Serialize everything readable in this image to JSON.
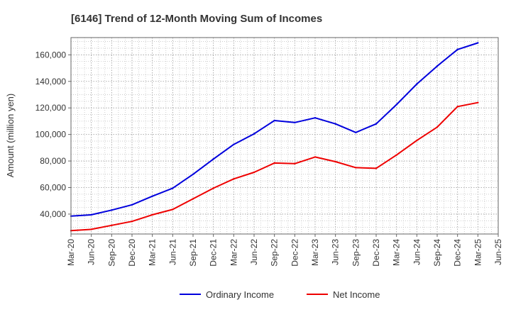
{
  "chart_data": {
    "type": "line",
    "title": "[6146]  Trend of 12-Month Moving Sum of Incomes",
    "xlabel": "",
    "ylabel": "Amount (million yen)",
    "ylim": [
      25000,
      173000
    ],
    "yticks": [
      40000,
      60000,
      80000,
      100000,
      120000,
      140000,
      160000
    ],
    "ytick_labels": [
      "40,000",
      "60,000",
      "80,000",
      "100,000",
      "120,000",
      "140,000",
      "160,000"
    ],
    "categories": [
      "Mar-20",
      "Jun-20",
      "Sep-20",
      "Dec-20",
      "Mar-21",
      "Jun-21",
      "Sep-21",
      "Dec-21",
      "Mar-22",
      "Jun-22",
      "Sep-22",
      "Dec-22",
      "Mar-23",
      "Jun-23",
      "Sep-23",
      "Dec-23",
      "Mar-24",
      "Jun-24",
      "Sep-24",
      "Dec-24",
      "Mar-25",
      "Jun-25"
    ],
    "grid": true,
    "legend_position": "bottom",
    "series": [
      {
        "name": "Ordinary Income",
        "color": "#0000dd",
        "values": [
          38500,
          39500,
          43000,
          47000,
          53500,
          59500,
          70000,
          81500,
          92500,
          100500,
          110500,
          109000,
          112500,
          108000,
          101500,
          108000,
          122500,
          138000,
          151500,
          164000,
          169000,
          null
        ]
      },
      {
        "name": "Net Income",
        "color": "#ee0000",
        "values": [
          27500,
          28500,
          31500,
          34500,
          39500,
          43500,
          51500,
          59500,
          66500,
          71500,
          78500,
          78000,
          83000,
          79500,
          75000,
          74500,
          84500,
          95500,
          105500,
          121000,
          124000,
          null
        ]
      }
    ]
  }
}
